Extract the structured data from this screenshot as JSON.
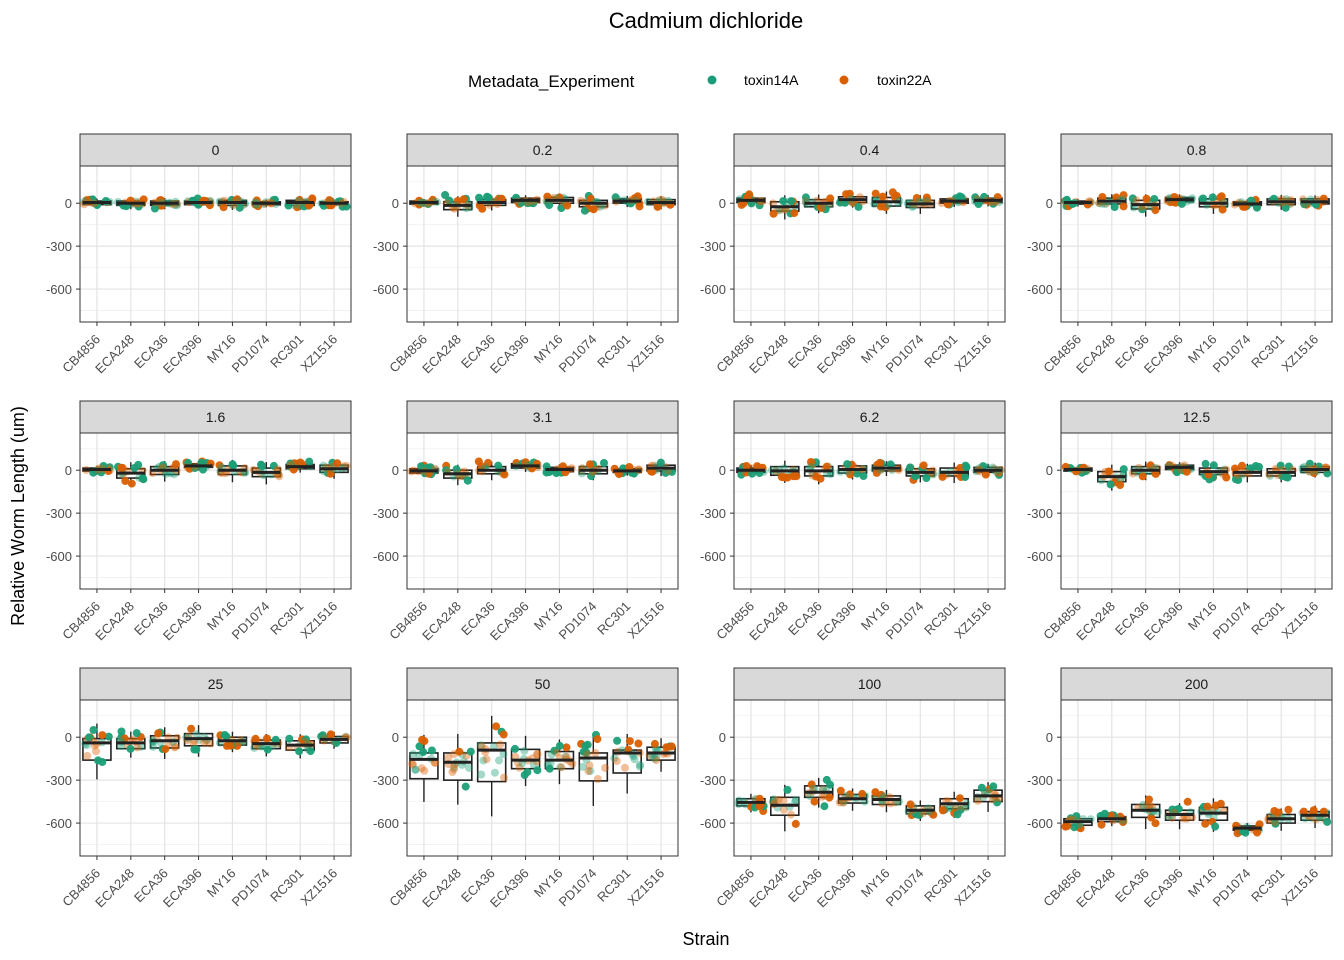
{
  "chart_data": {
    "type": "boxplot",
    "title": "Cadmium dichloride",
    "xlabel": "Strain",
    "ylabel": "Relative Worm Length (um)",
    "legend": {
      "title": "Metadata_Experiment",
      "position": "top",
      "entries": [
        {
          "name": "toxin14A",
          "color": "#1B9E77"
        },
        {
          "name": "toxin22A",
          "color": "#D95F02"
        }
      ]
    },
    "ylim": [
      -830,
      260
    ],
    "yticks": [
      0,
      -300,
      -600
    ],
    "ytick_labels": [
      "0",
      "-300",
      "-600"
    ],
    "strains": [
      "CB4856",
      "ECA248",
      "ECA36",
      "ECA396",
      "MY16",
      "PD1074",
      "RC301",
      "XZ1516"
    ],
    "panels": [
      {
        "label": "0",
        "medians": [
          5,
          0,
          0,
          5,
          5,
          0,
          5,
          0
        ],
        "q1": [
          -10,
          -15,
          -15,
          -10,
          -15,
          -10,
          -15,
          -10
        ],
        "q3": [
          15,
          15,
          15,
          15,
          20,
          10,
          20,
          10
        ]
      },
      {
        "label": "0.2",
        "medians": [
          5,
          -15,
          5,
          20,
          20,
          0,
          15,
          5
        ],
        "q1": [
          -5,
          -45,
          -15,
          5,
          0,
          -25,
          0,
          -10
        ],
        "q3": [
          15,
          10,
          25,
          35,
          40,
          20,
          30,
          25
        ]
      },
      {
        "label": "0.4",
        "medians": [
          20,
          -25,
          0,
          25,
          10,
          -5,
          15,
          20
        ],
        "q1": [
          5,
          -55,
          -25,
          5,
          -20,
          -30,
          0,
          5
        ],
        "q3": [
          35,
          10,
          25,
          45,
          40,
          20,
          30,
          35
        ]
      },
      {
        "label": "0.8",
        "medians": [
          5,
          15,
          -10,
          25,
          0,
          -5,
          10,
          10
        ],
        "q1": [
          -5,
          -5,
          -40,
          10,
          -25,
          -15,
          -10,
          -5
        ],
        "q3": [
          15,
          35,
          20,
          40,
          30,
          10,
          30,
          30
        ]
      },
      {
        "label": "1.6",
        "medians": [
          5,
          -20,
          0,
          30,
          0,
          -15,
          25,
          10
        ],
        "q1": [
          -5,
          -55,
          -30,
          20,
          -30,
          -45,
          10,
          -15
        ],
        "q3": [
          15,
          10,
          25,
          45,
          30,
          15,
          40,
          35
        ]
      },
      {
        "label": "3.1",
        "medians": [
          -5,
          -25,
          0,
          30,
          5,
          0,
          -5,
          15
        ],
        "q1": [
          -20,
          -55,
          -25,
          15,
          -10,
          -25,
          -15,
          -5
        ],
        "q3": [
          10,
          0,
          25,
          45,
          20,
          25,
          10,
          35
        ]
      },
      {
        "label": "6.2",
        "medians": [
          0,
          -5,
          -5,
          5,
          15,
          -15,
          -15,
          0
        ],
        "q1": [
          -15,
          -35,
          -40,
          -20,
          -5,
          -40,
          -40,
          -15
        ],
        "q3": [
          15,
          25,
          25,
          30,
          35,
          10,
          15,
          20
        ]
      },
      {
        "label": "12.5",
        "medians": [
          5,
          -45,
          0,
          20,
          -10,
          -15,
          -15,
          5
        ],
        "q1": [
          -5,
          -80,
          -25,
          5,
          -30,
          -40,
          -40,
          -15
        ],
        "q3": [
          15,
          -10,
          25,
          35,
          15,
          10,
          10,
          25
        ]
      },
      {
        "label": "25",
        "medians": [
          -40,
          -40,
          -25,
          -10,
          -25,
          -45,
          -55,
          -15
        ],
        "q1": [
          -160,
          -80,
          -75,
          -60,
          -55,
          -80,
          -90,
          -40
        ],
        "q3": [
          -10,
          -10,
          10,
          25,
          0,
          -20,
          -25,
          5
        ]
      },
      {
        "label": "50",
        "medians": [
          -155,
          -175,
          -90,
          -160,
          -160,
          -145,
          -110,
          -110
        ],
        "q1": [
          -290,
          -300,
          -310,
          -220,
          -220,
          -305,
          -250,
          -160
        ],
        "q3": [
          -110,
          -110,
          -40,
          -85,
          -100,
          -110,
          -90,
          -70
        ]
      },
      {
        "label": "100",
        "medians": [
          -455,
          -475,
          -385,
          -430,
          -435,
          -510,
          -465,
          -410
        ],
        "q1": [
          -480,
          -545,
          -420,
          -460,
          -470,
          -535,
          -500,
          -450
        ],
        "q3": [
          -430,
          -420,
          -340,
          -400,
          -410,
          -480,
          -430,
          -370
        ]
      },
      {
        "label": "200",
        "medians": [
          -590,
          -570,
          -510,
          -540,
          -530,
          -635,
          -570,
          -545
        ],
        "q1": [
          -615,
          -590,
          -560,
          -580,
          -580,
          -650,
          -600,
          -580
        ],
        "q3": [
          -570,
          -555,
          -470,
          -510,
          -490,
          -620,
          -540,
          -520
        ]
      }
    ]
  }
}
